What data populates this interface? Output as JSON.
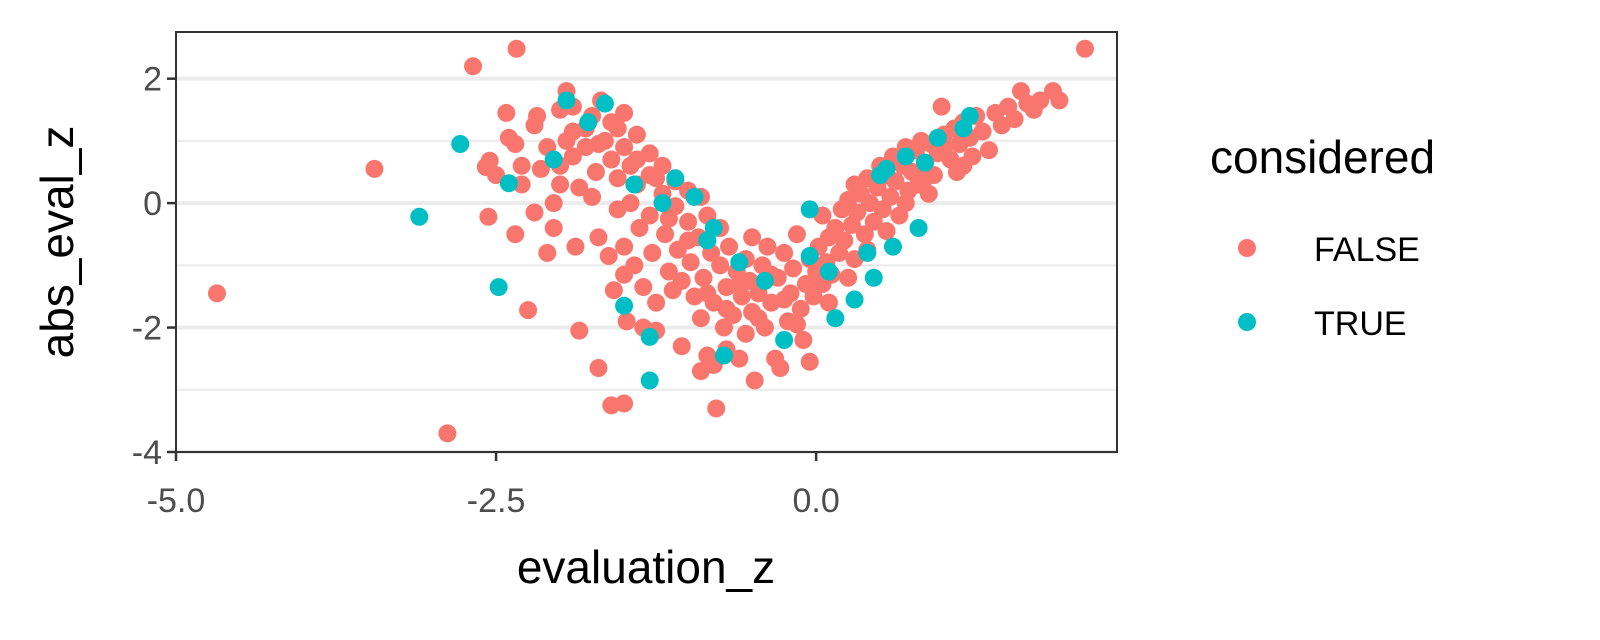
{
  "chart_data": {
    "type": "scatter",
    "xlabel": "evaluation_z",
    "ylabel": "abs_eval_z",
    "xlim": [
      -5.0,
      2.35
    ],
    "ylim": [
      -4.0,
      2.75
    ],
    "x_ticks": [
      -5.0,
      -2.5,
      0.0
    ],
    "x_tick_labels": [
      "-5.0",
      "-2.5",
      "0.0"
    ],
    "y_ticks": [
      -4,
      -2,
      0,
      2
    ],
    "y_tick_labels": [
      "-4",
      "-2",
      "0",
      "2"
    ],
    "grid": true,
    "legend": {
      "title": "considered",
      "placement": "right",
      "entries": [
        "FALSE",
        "TRUE"
      ]
    },
    "series": [
      {
        "name": "FALSE",
        "color": "#F8766D",
        "points": [
          [
            -4.68,
            -1.45
          ],
          [
            -3.45,
            0.55
          ],
          [
            -2.88,
            -3.7
          ],
          [
            -2.68,
            2.2
          ],
          [
            -2.34,
            2.48
          ],
          [
            -2.58,
            0.58
          ],
          [
            -2.55,
            0.68
          ],
          [
            -2.5,
            0.45
          ],
          [
            -2.56,
            -0.22
          ],
          [
            -2.42,
            1.45
          ],
          [
            -2.4,
            1.05
          ],
          [
            -2.35,
            0.95
          ],
          [
            -2.3,
            0.6
          ],
          [
            -2.3,
            0.3
          ],
          [
            -2.35,
            -0.5
          ],
          [
            -2.25,
            -1.72
          ],
          [
            -2.2,
            1.25
          ],
          [
            -2.18,
            1.4
          ],
          [
            -2.2,
            -0.15
          ],
          [
            -2.15,
            0.55
          ],
          [
            -2.1,
            0.9
          ],
          [
            -2.1,
            -0.8
          ],
          [
            -2.05,
            0.0
          ],
          [
            -2.05,
            -0.4
          ],
          [
            -2.0,
            0.6
          ],
          [
            -2.0,
            1.5
          ],
          [
            -2.0,
            0.3
          ],
          [
            -1.95,
            1.8
          ],
          [
            -1.9,
            0.75
          ],
          [
            -1.9,
            1.15
          ],
          [
            -1.9,
            1.55
          ],
          [
            -1.88,
            -0.7
          ],
          [
            -1.85,
            0.25
          ],
          [
            -1.85,
            -2.05
          ],
          [
            -1.8,
            0.9
          ],
          [
            -1.8,
            1.2
          ],
          [
            -1.75,
            1.4
          ],
          [
            -1.75,
            0.1
          ],
          [
            -1.72,
            0.5
          ],
          [
            -1.7,
            -0.55
          ],
          [
            -1.7,
            -2.65
          ],
          [
            -1.68,
            1.65
          ],
          [
            -1.65,
            1.0
          ],
          [
            -1.62,
            -0.85
          ],
          [
            -1.6,
            0.7
          ],
          [
            -1.6,
            1.3
          ],
          [
            -1.6,
            -3.25
          ],
          [
            -1.58,
            -1.4
          ],
          [
            -1.55,
            0.4
          ],
          [
            -1.55,
            -0.1
          ],
          [
            -1.5,
            1.45
          ],
          [
            -1.5,
            0.9
          ],
          [
            -1.5,
            -0.7
          ],
          [
            -1.5,
            -1.15
          ],
          [
            -1.5,
            -3.22
          ],
          [
            -1.48,
            -1.9
          ],
          [
            -1.45,
            0.6
          ],
          [
            -1.45,
            0.0
          ],
          [
            -1.42,
            -1.0
          ],
          [
            -1.4,
            1.1
          ],
          [
            -1.4,
            0.3
          ],
          [
            -1.38,
            -0.4
          ],
          [
            -1.35,
            -1.35
          ],
          [
            -1.35,
            -2.0
          ],
          [
            -1.3,
            0.8
          ],
          [
            -1.3,
            0.45
          ],
          [
            -1.3,
            -0.2
          ],
          [
            -1.28,
            -0.8
          ],
          [
            -1.25,
            -1.6
          ],
          [
            -1.25,
            -2.05
          ],
          [
            -1.2,
            0.6
          ],
          [
            -1.2,
            0.15
          ],
          [
            -1.18,
            -0.5
          ],
          [
            -1.15,
            -1.1
          ],
          [
            -1.12,
            -1.4
          ],
          [
            -1.1,
            0.35
          ],
          [
            -1.1,
            -0.05
          ],
          [
            -1.08,
            -0.75
          ],
          [
            -1.05,
            -1.25
          ],
          [
            -1.05,
            -2.3
          ],
          [
            -1.0,
            0.2
          ],
          [
            -1.0,
            -0.3
          ],
          [
            -0.98,
            -0.95
          ],
          [
            -0.95,
            -1.5
          ],
          [
            -0.92,
            -0.55
          ],
          [
            -0.9,
            0.1
          ],
          [
            -0.9,
            -1.85
          ],
          [
            -0.9,
            -2.7
          ],
          [
            -0.88,
            -1.2
          ],
          [
            -0.85,
            -0.2
          ],
          [
            -0.85,
            -2.45
          ],
          [
            -0.82,
            -0.8
          ],
          [
            -0.8,
            -1.6
          ],
          [
            -0.8,
            -2.6
          ],
          [
            -0.78,
            -3.3
          ],
          [
            -0.75,
            -1.0
          ],
          [
            -0.75,
            -0.4
          ],
          [
            -0.72,
            -2.0
          ],
          [
            -0.7,
            -1.35
          ],
          [
            -0.7,
            -2.35
          ],
          [
            -0.68,
            -0.7
          ],
          [
            -0.65,
            -1.8
          ],
          [
            -0.62,
            -1.1
          ],
          [
            -0.6,
            -2.5
          ],
          [
            -0.58,
            -1.5
          ],
          [
            -0.55,
            -0.9
          ],
          [
            -0.55,
            -2.1
          ],
          [
            -0.52,
            -1.25
          ],
          [
            -0.5,
            -0.55
          ],
          [
            -0.5,
            -1.75
          ],
          [
            -0.48,
            -2.85
          ],
          [
            -0.45,
            -1.45
          ],
          [
            -0.42,
            -1.0
          ],
          [
            -0.4,
            -2.0
          ],
          [
            -0.38,
            -0.7
          ],
          [
            -0.35,
            -1.6
          ],
          [
            -0.32,
            -2.5
          ],
          [
            -0.3,
            -1.2
          ],
          [
            -0.28,
            -2.65
          ],
          [
            -0.25,
            -0.8
          ],
          [
            -0.22,
            -1.9
          ],
          [
            -0.2,
            -1.45
          ],
          [
            -0.18,
            -1.05
          ],
          [
            -0.15,
            -0.5
          ],
          [
            -0.12,
            -1.7
          ],
          [
            -0.1,
            -2.2
          ],
          [
            -0.08,
            -1.3
          ],
          [
            -0.05,
            -0.9
          ],
          [
            -0.05,
            -2.55
          ],
          [
            -0.02,
            -1.5
          ],
          [
            0.0,
            -1.1
          ],
          [
            0.02,
            -0.7
          ],
          [
            0.05,
            -1.3
          ],
          [
            0.05,
            -0.2
          ],
          [
            0.08,
            -0.95
          ],
          [
            0.1,
            -0.55
          ],
          [
            0.12,
            -1.15
          ],
          [
            0.15,
            -0.4
          ],
          [
            0.18,
            -0.8
          ],
          [
            0.2,
            -0.1
          ],
          [
            0.22,
            -0.6
          ],
          [
            0.25,
            0.05
          ],
          [
            0.28,
            -0.35
          ],
          [
            0.3,
            0.3
          ],
          [
            0.3,
            -0.9
          ],
          [
            0.32,
            -0.15
          ],
          [
            0.35,
            0.15
          ],
          [
            0.38,
            -0.5
          ],
          [
            0.4,
            0.4
          ],
          [
            0.42,
            0.0
          ],
          [
            0.45,
            -0.3
          ],
          [
            0.48,
            0.25
          ],
          [
            0.5,
            0.6
          ],
          [
            0.52,
            -0.1
          ],
          [
            0.55,
            0.45
          ],
          [
            0.58,
            0.1
          ],
          [
            0.6,
            0.75
          ],
          [
            0.62,
            0.35
          ],
          [
            0.65,
            -0.2
          ],
          [
            0.68,
            0.6
          ],
          [
            0.7,
            0.9
          ],
          [
            0.72,
            0.2
          ],
          [
            0.75,
            0.5
          ],
          [
            0.78,
            0.85
          ],
          [
            0.8,
            0.3
          ],
          [
            0.82,
            1.0
          ],
          [
            0.85,
            0.65
          ],
          [
            0.88,
            0.15
          ],
          [
            0.9,
            0.95
          ],
          [
            0.92,
            0.45
          ],
          [
            0.95,
            0.8
          ],
          [
            0.98,
            1.55
          ],
          [
            1.0,
            1.1
          ],
          [
            1.05,
            0.7
          ],
          [
            1.08,
            1.2
          ],
          [
            1.1,
            0.5
          ],
          [
            1.12,
            0.95
          ],
          [
            1.15,
            1.3
          ],
          [
            1.2,
            1.05
          ],
          [
            1.22,
            0.75
          ],
          [
            1.25,
            1.4
          ],
          [
            1.3,
            1.15
          ],
          [
            1.35,
            0.85
          ],
          [
            1.4,
            1.45
          ],
          [
            1.45,
            1.25
          ],
          [
            1.5,
            1.55
          ],
          [
            1.55,
            1.35
          ],
          [
            1.6,
            1.8
          ],
          [
            1.65,
            1.6
          ],
          [
            1.7,
            1.5
          ],
          [
            1.75,
            1.65
          ],
          [
            1.85,
            1.8
          ],
          [
            1.9,
            1.65
          ],
          [
            2.1,
            2.48
          ],
          [
            -1.95,
            1.0
          ],
          [
            -1.7,
            0.95
          ],
          [
            -1.55,
            1.2
          ],
          [
            -1.4,
            0.7
          ],
          [
            -1.25,
            0.4
          ],
          [
            -1.15,
            -0.25
          ],
          [
            -1.0,
            -0.6
          ],
          [
            -0.85,
            -1.45
          ],
          [
            -0.7,
            -1.7
          ],
          [
            -0.6,
            -1.3
          ],
          [
            -0.45,
            -1.85
          ],
          [
            -0.35,
            -1.15
          ],
          [
            -0.25,
            -1.55
          ],
          [
            -0.15,
            -1.95
          ],
          [
            0.1,
            -1.6
          ],
          [
            0.25,
            -1.2
          ],
          [
            0.4,
            -0.75
          ],
          [
            0.55,
            -0.45
          ],
          [
            0.7,
            0.0
          ],
          [
            0.85,
            0.4
          ],
          [
            1.0,
            0.9
          ],
          [
            1.15,
            0.6
          ]
        ]
      },
      {
        "name": "TRUE",
        "color": "#00BFC4",
        "points": [
          [
            -3.1,
            -0.22
          ],
          [
            -2.78,
            0.95
          ],
          [
            -2.48,
            -1.35
          ],
          [
            -2.4,
            0.32
          ],
          [
            -2.05,
            0.7
          ],
          [
            -1.95,
            1.65
          ],
          [
            -1.78,
            1.3
          ],
          [
            -1.65,
            1.6
          ],
          [
            -1.5,
            -1.65
          ],
          [
            -1.42,
            0.3
          ],
          [
            -1.3,
            -2.15
          ],
          [
            -1.3,
            -2.85
          ],
          [
            -1.2,
            0.0
          ],
          [
            -1.1,
            0.4
          ],
          [
            -0.95,
            0.1
          ],
          [
            -0.85,
            -0.6
          ],
          [
            -0.8,
            -0.4
          ],
          [
            -0.72,
            -2.45
          ],
          [
            -0.6,
            -0.95
          ],
          [
            -0.4,
            -1.25
          ],
          [
            -0.25,
            -2.2
          ],
          [
            -0.05,
            -0.1
          ],
          [
            -0.05,
            -0.85
          ],
          [
            0.1,
            -1.1
          ],
          [
            0.15,
            -1.85
          ],
          [
            0.3,
            -1.55
          ],
          [
            0.4,
            -0.8
          ],
          [
            0.45,
            -1.2
          ],
          [
            0.5,
            0.45
          ],
          [
            0.55,
            0.55
          ],
          [
            0.6,
            -0.7
          ],
          [
            0.7,
            0.75
          ],
          [
            0.8,
            -0.4
          ],
          [
            0.85,
            0.65
          ],
          [
            0.95,
            1.05
          ],
          [
            1.15,
            1.2
          ],
          [
            1.2,
            1.4
          ]
        ]
      }
    ]
  }
}
